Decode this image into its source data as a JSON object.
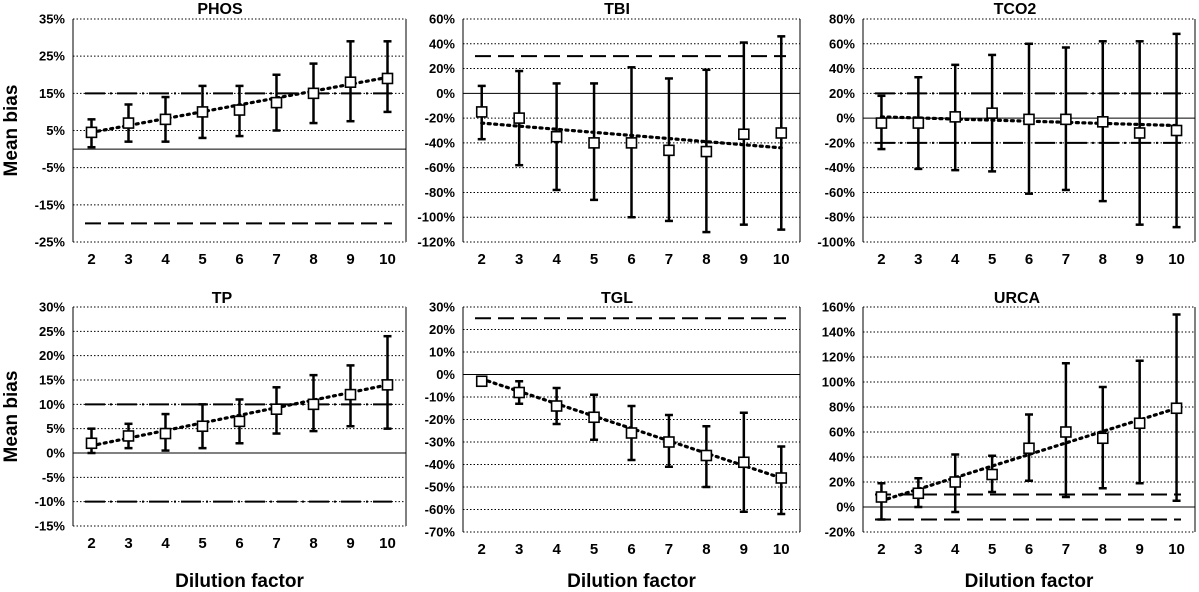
{
  "figure": {
    "ylabel": "Mean bias",
    "xlabel": "Dilution factor"
  },
  "chart_data": [
    {
      "type": "scatter",
      "title": "PHOS",
      "xlabel": "",
      "ylabel": "Mean bias",
      "x": [
        2,
        3,
        4,
        5,
        6,
        7,
        8,
        9,
        10
      ],
      "series": [
        {
          "name": "Mean bias",
          "values": [
            4.5,
            7,
            8,
            10,
            10.5,
            12.5,
            15,
            18,
            19
          ],
          "err_low": [
            0.5,
            2,
            2,
            3,
            3.5,
            5,
            7,
            7.5,
            10
          ],
          "err_high": [
            8,
            12,
            14,
            17,
            17,
            20,
            23,
            29,
            29
          ]
        }
      ],
      "trendline": [
        4.5,
        19.3
      ],
      "limits": [
        {
          "value": 15,
          "style": "dashdot"
        },
        {
          "value": -20,
          "style": "dashed"
        }
      ],
      "ylim": [
        -25,
        35
      ],
      "yticks": [
        -25,
        -15,
        -5,
        5,
        15,
        25,
        35
      ],
      "ytick_labels": [
        "-25%",
        "-15%",
        "-5%",
        "5%",
        "15%",
        "25%",
        "35%"
      ],
      "grid": true
    },
    {
      "type": "scatter",
      "title": "TBI",
      "xlabel": "",
      "ylabel": "",
      "x": [
        2,
        3,
        4,
        5,
        6,
        7,
        8,
        9,
        10
      ],
      "series": [
        {
          "name": "Mean bias",
          "values": [
            -15,
            -20,
            -35,
            -40,
            -40,
            -46,
            -47,
            -33,
            -32
          ],
          "err_low": [
            -37,
            -58,
            -78,
            -86,
            -100,
            -103,
            -112,
            -106,
            -110
          ],
          "err_high": [
            6,
            18,
            8,
            8,
            21,
            12,
            19,
            41,
            46
          ]
        }
      ],
      "trendline": [
        -24,
        -44
      ],
      "limits": [
        {
          "value": 30,
          "style": "dashed"
        }
      ],
      "ylim": [
        -120,
        60
      ],
      "yticks": [
        -120,
        -100,
        -80,
        -60,
        -40,
        -20,
        0,
        20,
        40,
        60
      ],
      "ytick_labels": [
        "-120%",
        "-100%",
        "-80%",
        "-60%",
        "-40%",
        "-20%",
        "0%",
        "20%",
        "40%",
        "60%"
      ],
      "grid": true
    },
    {
      "type": "scatter",
      "title": "TCO2",
      "xlabel": "",
      "ylabel": "",
      "x": [
        2,
        3,
        4,
        5,
        6,
        7,
        8,
        9,
        10
      ],
      "series": [
        {
          "name": "Mean bias",
          "values": [
            -4,
            -4,
            1,
            4,
            -1,
            -1,
            -3,
            -12,
            -10
          ],
          "err_low": [
            -25,
            -41,
            -42,
            -43,
            -61,
            -58,
            -67,
            -86,
            -88
          ],
          "err_high": [
            18,
            33,
            43,
            51,
            60,
            57,
            62,
            62,
            68
          ]
        }
      ],
      "trendline": [
        1,
        -6
      ],
      "limits": [
        {
          "value": 20,
          "style": "dashdot"
        },
        {
          "value": -20,
          "style": "dashdot"
        }
      ],
      "ylim": [
        -100,
        80
      ],
      "yticks": [
        -100,
        -80,
        -60,
        -40,
        -20,
        0,
        20,
        40,
        60,
        80
      ],
      "ytick_labels": [
        "-100%",
        "-80%",
        "-60%",
        "-40%",
        "-20%",
        "0%",
        "20%",
        "40%",
        "60%",
        "80%"
      ],
      "grid": true
    },
    {
      "type": "scatter",
      "title": "TP",
      "xlabel": "Dilution factor",
      "ylabel": "Mean bias",
      "x": [
        2,
        3,
        4,
        5,
        6,
        7,
        8,
        9,
        10
      ],
      "series": [
        {
          "name": "Mean bias",
          "values": [
            2,
            3.5,
            4,
            5.5,
            6.5,
            9,
            10,
            12,
            14
          ],
          "err_low": [
            0,
            1,
            0.5,
            1,
            2,
            4,
            4.5,
            5.5,
            5
          ],
          "err_high": [
            5,
            6,
            8,
            10,
            11,
            13.5,
            16,
            18,
            24
          ]
        }
      ],
      "trendline": [
        1.5,
        14
      ],
      "limits": [
        {
          "value": 10,
          "style": "dashdot"
        },
        {
          "value": -10,
          "style": "dashdot"
        }
      ],
      "ylim": [
        -15,
        30
      ],
      "yticks": [
        -15,
        -10,
        -5,
        0,
        5,
        10,
        15,
        20,
        25,
        30
      ],
      "ytick_labels": [
        "-15%",
        "-10%",
        "-5%",
        "0%",
        "5%",
        "10%",
        "15%",
        "20%",
        "25%",
        "30%"
      ],
      "grid": true
    },
    {
      "type": "scatter",
      "title": "TGL",
      "xlabel": "Dilution factor",
      "ylabel": "",
      "x": [
        2,
        3,
        4,
        5,
        6,
        7,
        8,
        9,
        10
      ],
      "series": [
        {
          "name": "Mean bias",
          "values": [
            -3,
            -8,
            -14,
            -19,
            -26,
            -30,
            -36,
            -39,
            -46
          ],
          "err_low": [
            -5,
            -13,
            -22,
            -29,
            -38,
            -41,
            -50,
            -61,
            -62
          ],
          "err_high": [
            -1,
            -3,
            -6,
            -9,
            -14,
            -18,
            -23,
            -17,
            -32
          ]
        }
      ],
      "trendline": [
        -2,
        -46
      ],
      "limits": [
        {
          "value": 25,
          "style": "dashed"
        }
      ],
      "ylim": [
        -70,
        30
      ],
      "yticks": [
        -70,
        -60,
        -50,
        -40,
        -30,
        -20,
        -10,
        0,
        10,
        20,
        30
      ],
      "ytick_labels": [
        "-70%",
        "-60%",
        "-50%",
        "-40%",
        "-30%",
        "-20%",
        "-10%",
        "0%",
        "10%",
        "20%",
        "30%"
      ],
      "grid": true
    },
    {
      "type": "scatter",
      "title": "URCA",
      "xlabel": "Dilution factor",
      "ylabel": "",
      "x": [
        2,
        3,
        4,
        5,
        6,
        7,
        8,
        9,
        10
      ],
      "series": [
        {
          "name": "Mean bias",
          "values": [
            8,
            11,
            20,
            26,
            47,
            60,
            55,
            67,
            79
          ],
          "err_low": [
            -10,
            0,
            -4,
            12,
            21,
            8,
            15,
            19,
            5
          ],
          "err_high": [
            19,
            23,
            42,
            41,
            74,
            115,
            96,
            117,
            154
          ]
        }
      ],
      "trendline": [
        5,
        79
      ],
      "limits": [
        {
          "value": 10,
          "style": "dashed"
        },
        {
          "value": -10,
          "style": "dashed"
        }
      ],
      "ylim": [
        -20,
        160
      ],
      "yticks": [
        -20,
        0,
        20,
        40,
        60,
        80,
        100,
        120,
        140,
        160
      ],
      "ytick_labels": [
        "-20%",
        "0%",
        "20%",
        "40%",
        "60%",
        "80%",
        "100%",
        "120%",
        "140%",
        "160%"
      ],
      "grid": true
    }
  ]
}
